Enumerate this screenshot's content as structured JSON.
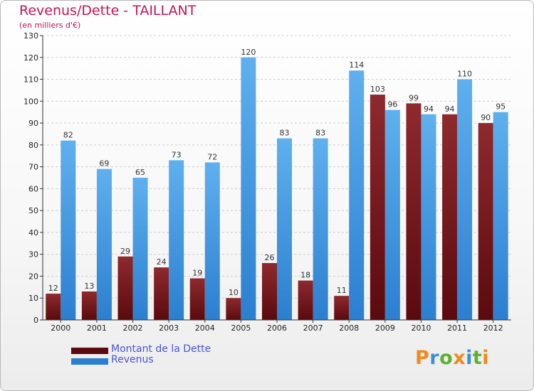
{
  "header": {
    "title": "Revenus/Dette - TAILLANT",
    "subtitle": "(en milliers d'€)"
  },
  "legend": {
    "debt_label": "Montant de la Dette",
    "revenue_label": "Revenus"
  },
  "logo": {
    "text": "Proxiti"
  },
  "colors": {
    "debt_top": "#8e2a2e",
    "debt_bottom": "#5a0a0e",
    "revenue_top": "#5fb0ee",
    "revenue_bottom": "#2b7fd0",
    "grid": "#cccccc",
    "axis": "#333333"
  },
  "chart_data": {
    "type": "bar",
    "title": "Revenus/Dette - TAILLANT",
    "subtitle": "(en milliers d'€)",
    "categories": [
      "2000",
      "2001",
      "2002",
      "2003",
      "2004",
      "2005",
      "2006",
      "2007",
      "2008",
      "2009",
      "2010",
      "2011",
      "2012"
    ],
    "series": [
      {
        "name": "Montant de la Dette",
        "values": [
          12,
          13,
          29,
          24,
          19,
          10,
          26,
          18,
          11,
          103,
          99,
          94,
          90
        ]
      },
      {
        "name": "Revenus",
        "values": [
          82,
          69,
          65,
          73,
          72,
          120,
          83,
          83,
          114,
          96,
          94,
          110,
          95
        ]
      }
    ],
    "ylim": [
      0,
      130
    ],
    "yticks": [
      0,
      10,
      20,
      30,
      40,
      50,
      60,
      70,
      80,
      90,
      100,
      110,
      120,
      130
    ],
    "grid": true,
    "legend_position": "bottom-left"
  }
}
